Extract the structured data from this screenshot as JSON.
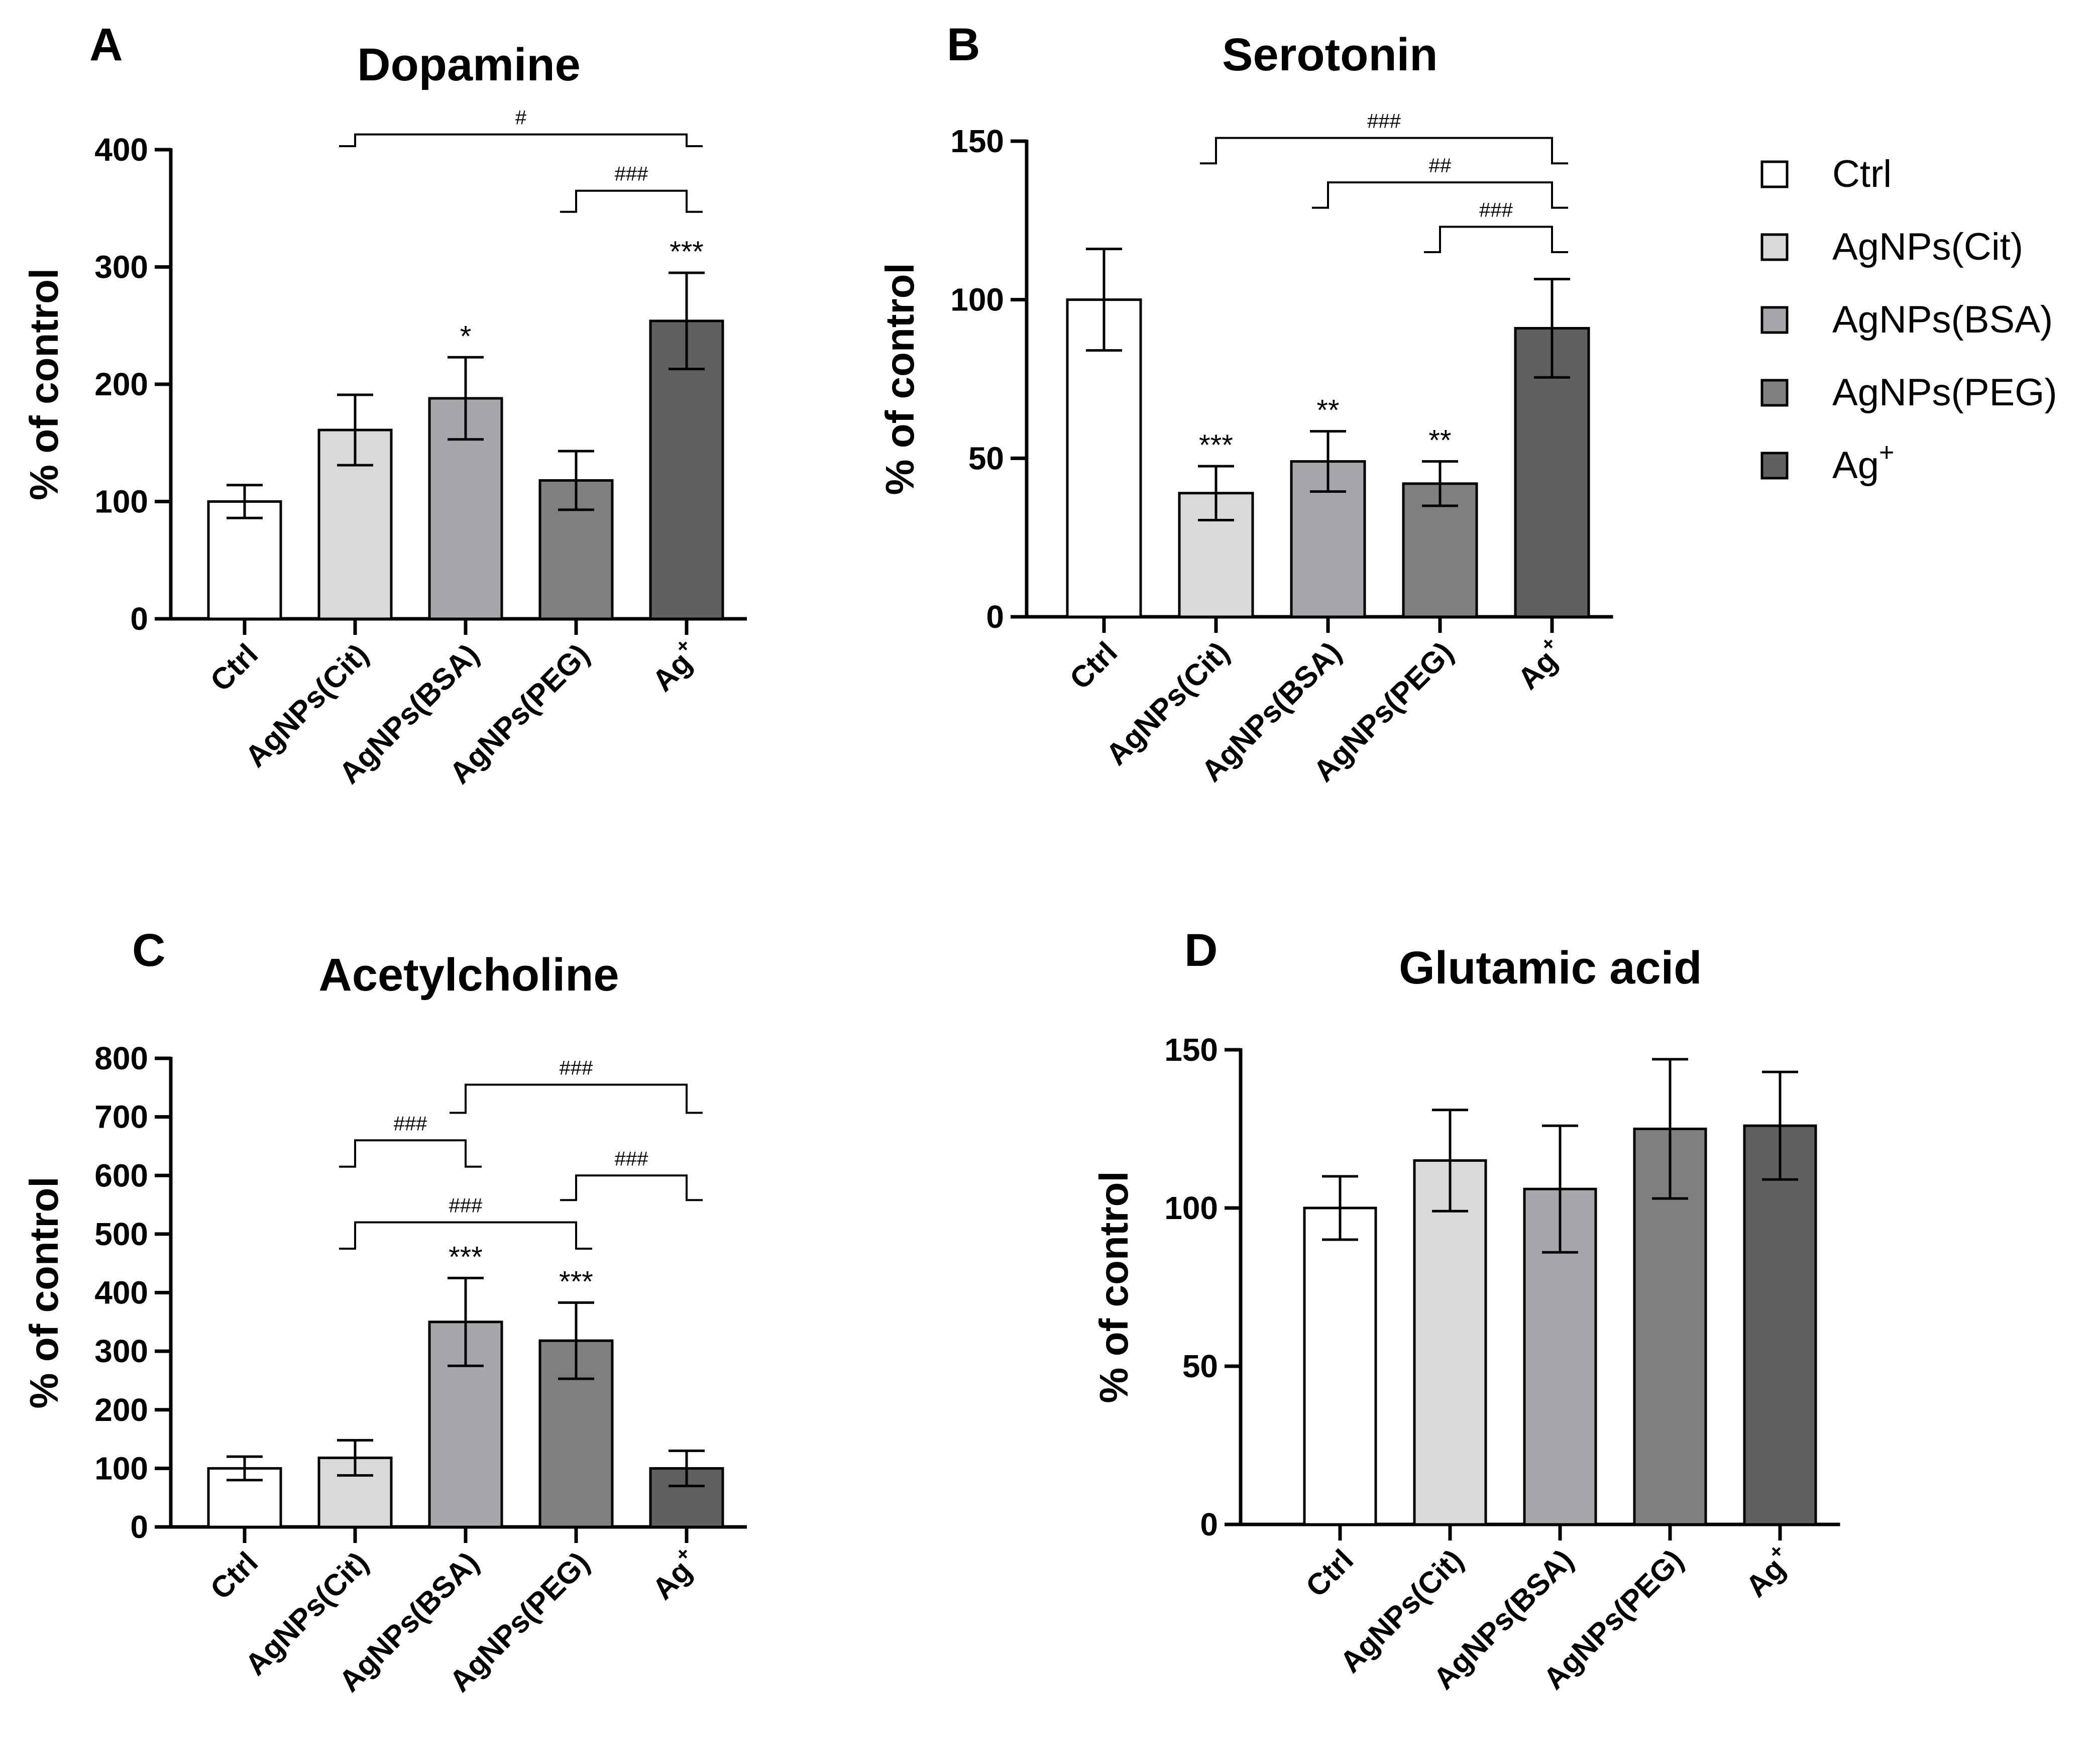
{
  "colors": {
    "Ctrl": "#ffffff",
    "AgNPs(Cit)": "#d9d9d9",
    "AgNPs(BSA)": "#a6a6ab",
    "AgNPs(PEG)": "#7f7f7f",
    "Ag+": "#5f5f5f"
  },
  "legend": {
    "items": [
      {
        "key": "Ctrl",
        "label": "Ctrl"
      },
      {
        "key": "AgNPs(Cit)",
        "label": "AgNPs(Cit)"
      },
      {
        "key": "AgNPs(BSA)",
        "label": "AgNPs(BSA)"
      },
      {
        "key": "AgNPs(PEG)",
        "label": "AgNPs(PEG)"
      },
      {
        "key": "Ag+",
        "label": "Ag",
        "sup": "+"
      }
    ]
  },
  "chart_data": [
    {
      "panel": "A",
      "type": "bar",
      "title": "Dopamine",
      "ylabel": "% of control",
      "ylim": [
        0,
        400
      ],
      "yticks": [
        0,
        100,
        200,
        300,
        400
      ],
      "categories": [
        "Ctrl",
        "AgNPs(Cit)",
        "AgNPs(BSA)",
        "AgNPs(PEG)",
        "Ag"
      ],
      "category_sup": [
        "",
        "",
        "",
        "",
        "+"
      ],
      "values": [
        100,
        161,
        188,
        118,
        254
      ],
      "errors": [
        14,
        30,
        35,
        25,
        41
      ],
      "stars": [
        "",
        "",
        "*",
        "",
        "***"
      ],
      "brackets": [
        {
          "from": 1,
          "to": 4,
          "label": "#",
          "top": 413,
          "drop": 10
        },
        {
          "from": 3,
          "to": 4,
          "label": "###",
          "top": 365,
          "drop": 18
        }
      ]
    },
    {
      "panel": "B",
      "type": "bar",
      "title": "Serotonin",
      "ylabel": "% of control",
      "ylim": [
        0,
        150
      ],
      "yticks": [
        0,
        50,
        100,
        150
      ],
      "categories": [
        "Ctrl",
        "AgNPs(Cit)",
        "AgNPs(BSA)",
        "AgNPs(PEG)",
        "Ag"
      ],
      "category_sup": [
        "",
        "",
        "",
        "",
        "+"
      ],
      "values": [
        100,
        39,
        49,
        42,
        91
      ],
      "errors": [
        16,
        8.5,
        9.5,
        7,
        15.5
      ],
      "stars": [
        "",
        "***",
        "**",
        "**",
        ""
      ],
      "brackets": [
        {
          "from": 1,
          "to": 4,
          "label": "###",
          "top": 151,
          "drop": 8
        },
        {
          "from": 2,
          "to": 4,
          "label": "##",
          "top": 137,
          "drop": 8
        },
        {
          "from": 3,
          "to": 4,
          "label": "###",
          "top": 123,
          "drop": 8
        }
      ]
    },
    {
      "panel": "C",
      "type": "bar",
      "title": "Acetylcholine",
      "ylabel": "% of control",
      "ylim": [
        0,
        800
      ],
      "yticks": [
        0,
        100,
        200,
        300,
        400,
        500,
        600,
        700,
        800
      ],
      "categories": [
        "Ctrl",
        "AgNPs(Cit)",
        "AgNPs(BSA)",
        "AgNPs(PEG)",
        "Ag"
      ],
      "category_sup": [
        "",
        "",
        "",
        "",
        "+"
      ],
      "values": [
        100,
        118,
        350,
        318,
        100
      ],
      "errors": [
        20,
        30,
        75,
        65,
        30
      ],
      "stars": [
        "",
        "",
        "***",
        "***",
        ""
      ],
      "brackets": [
        {
          "from": 2,
          "to": 4,
          "label": "###",
          "top": 755,
          "drop": 48
        },
        {
          "from": 1,
          "to": 2,
          "label": "###",
          "top": 660,
          "drop": 45
        },
        {
          "from": 3,
          "to": 4,
          "label": "###",
          "top": 600,
          "drop": 42
        },
        {
          "from": 1,
          "to": 3,
          "label": "###",
          "top": 520,
          "drop": 45
        }
      ]
    },
    {
      "panel": "D",
      "type": "bar",
      "title": "Glutamic acid",
      "ylabel": "% of control",
      "ylim": [
        0,
        150
      ],
      "yticks": [
        0,
        50,
        100,
        150
      ],
      "categories": [
        "Ctrl",
        "AgNPs(Cit)",
        "AgNPs(BSA)",
        "AgNPs(PEG)",
        "Ag"
      ],
      "category_sup": [
        "",
        "",
        "",
        "",
        "+"
      ],
      "values": [
        100,
        115,
        106,
        125,
        126
      ],
      "errors": [
        10,
        16,
        20,
        22,
        17
      ],
      "stars": [
        "",
        "",
        "",
        "",
        ""
      ],
      "brackets": []
    }
  ]
}
